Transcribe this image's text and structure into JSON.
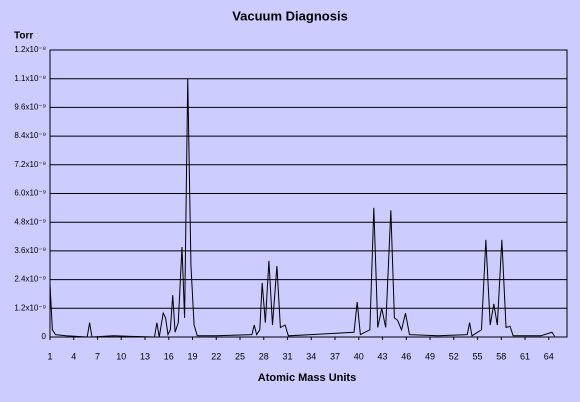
{
  "chart_data": {
    "type": "line",
    "title": "Vacuum Diagnosis",
    "y_label": "Torr",
    "x_label": "Atomic Mass Units",
    "x": [
      1,
      1.3,
      1.7,
      3,
      5.7,
      6,
      6.3,
      9,
      14.2,
      14.5,
      14.8,
      15.3,
      15.6,
      15.9,
      16.2,
      16.5,
      16.8,
      17.2,
      17.67,
      18.0,
      18.4,
      18.8,
      19.2,
      19.6,
      22,
      26.5,
      26.8,
      27.1,
      27.5,
      27.8,
      28.2,
      28.65,
      29.1,
      29.66,
      30.1,
      30.7,
      31.1,
      34,
      39.4,
      39.8,
      40.2,
      41.4,
      41.9,
      42.4,
      42.9,
      43.4,
      44.05,
      44.5,
      44.9,
      45.4,
      45.9,
      46.4,
      50,
      53.7,
      54,
      54.3,
      55.5,
      56.05,
      56.6,
      57.06,
      57.5,
      58.07,
      58.6,
      59.1,
      59.5,
      63,
      64.4,
      64.8
    ],
    "values": [
      2.2e-09,
      3e-10,
      1e-10,
      5e-11,
      0,
      6e-10,
      0,
      5e-11,
      0,
      6e-10,
      0,
      1e-09,
      8e-10,
      1e-10,
      3e-10,
      1.75e-09,
      2e-10,
      6e-10,
      3.76e-09,
      8e-10,
      1.08e-08,
      3e-09,
      5e-10,
      5e-11,
      5e-11,
      1e-10,
      5e-10,
      1e-10,
      3e-10,
      2.26e-09,
      6e-10,
      3.18e-09,
      5e-10,
      2.97e-09,
      4e-10,
      5e-10,
      5e-11,
      1e-10,
      2e-10,
      1.46e-09,
      1e-10,
      3e-10,
      5.4e-09,
      4e-10,
      1.2e-09,
      4e-10,
      5.3e-09,
      8e-10,
      7e-10,
      3e-10,
      1e-09,
      1e-10,
      5e-11,
      1e-10,
      6e-10,
      5e-11,
      3e-10,
      4.06e-09,
      5e-10,
      1.38e-09,
      5e-10,
      4.06e-09,
      4e-10,
      4.5e-10,
      5e-11,
      5e-11,
      2e-10,
      0
    ],
    "color": "#000000",
    "xlim": [
      1,
      66.3
    ],
    "xticks": [
      1,
      4,
      7,
      10,
      13,
      16,
      19,
      22,
      25,
      28,
      31,
      34,
      37,
      40,
      43,
      46,
      49,
      52,
      55,
      58,
      61,
      64
    ],
    "ylim": [
      0,
      1.2e-08
    ],
    "yticks": [
      0,
      {
        "value": 1.2e-09,
        "label": "1.2x10⁻⁹"
      },
      {
        "value": 2.4e-09,
        "label": "2.4x10⁻⁹"
      },
      {
        "value": 3.6e-09,
        "label": "3.6x10⁻⁹"
      },
      {
        "value": 4.8e-09,
        "label": "4.8x10⁻⁹"
      },
      {
        "value": 6e-09,
        "label": "6.0x10⁻⁹"
      },
      {
        "value": 7.2e-09,
        "label": "7.2x10⁻⁹"
      },
      {
        "value": 8.4e-09,
        "label": "8.4x10⁻⁹"
      },
      {
        "value": 9.6e-09,
        "label": "9.6x10⁻⁹"
      },
      {
        "value": 1.08e-08,
        "label": "1.1x10⁻⁸"
      },
      {
        "value": 1.2e-08,
        "label": "1.2x10⁻⁸"
      }
    ],
    "grid": true
  }
}
